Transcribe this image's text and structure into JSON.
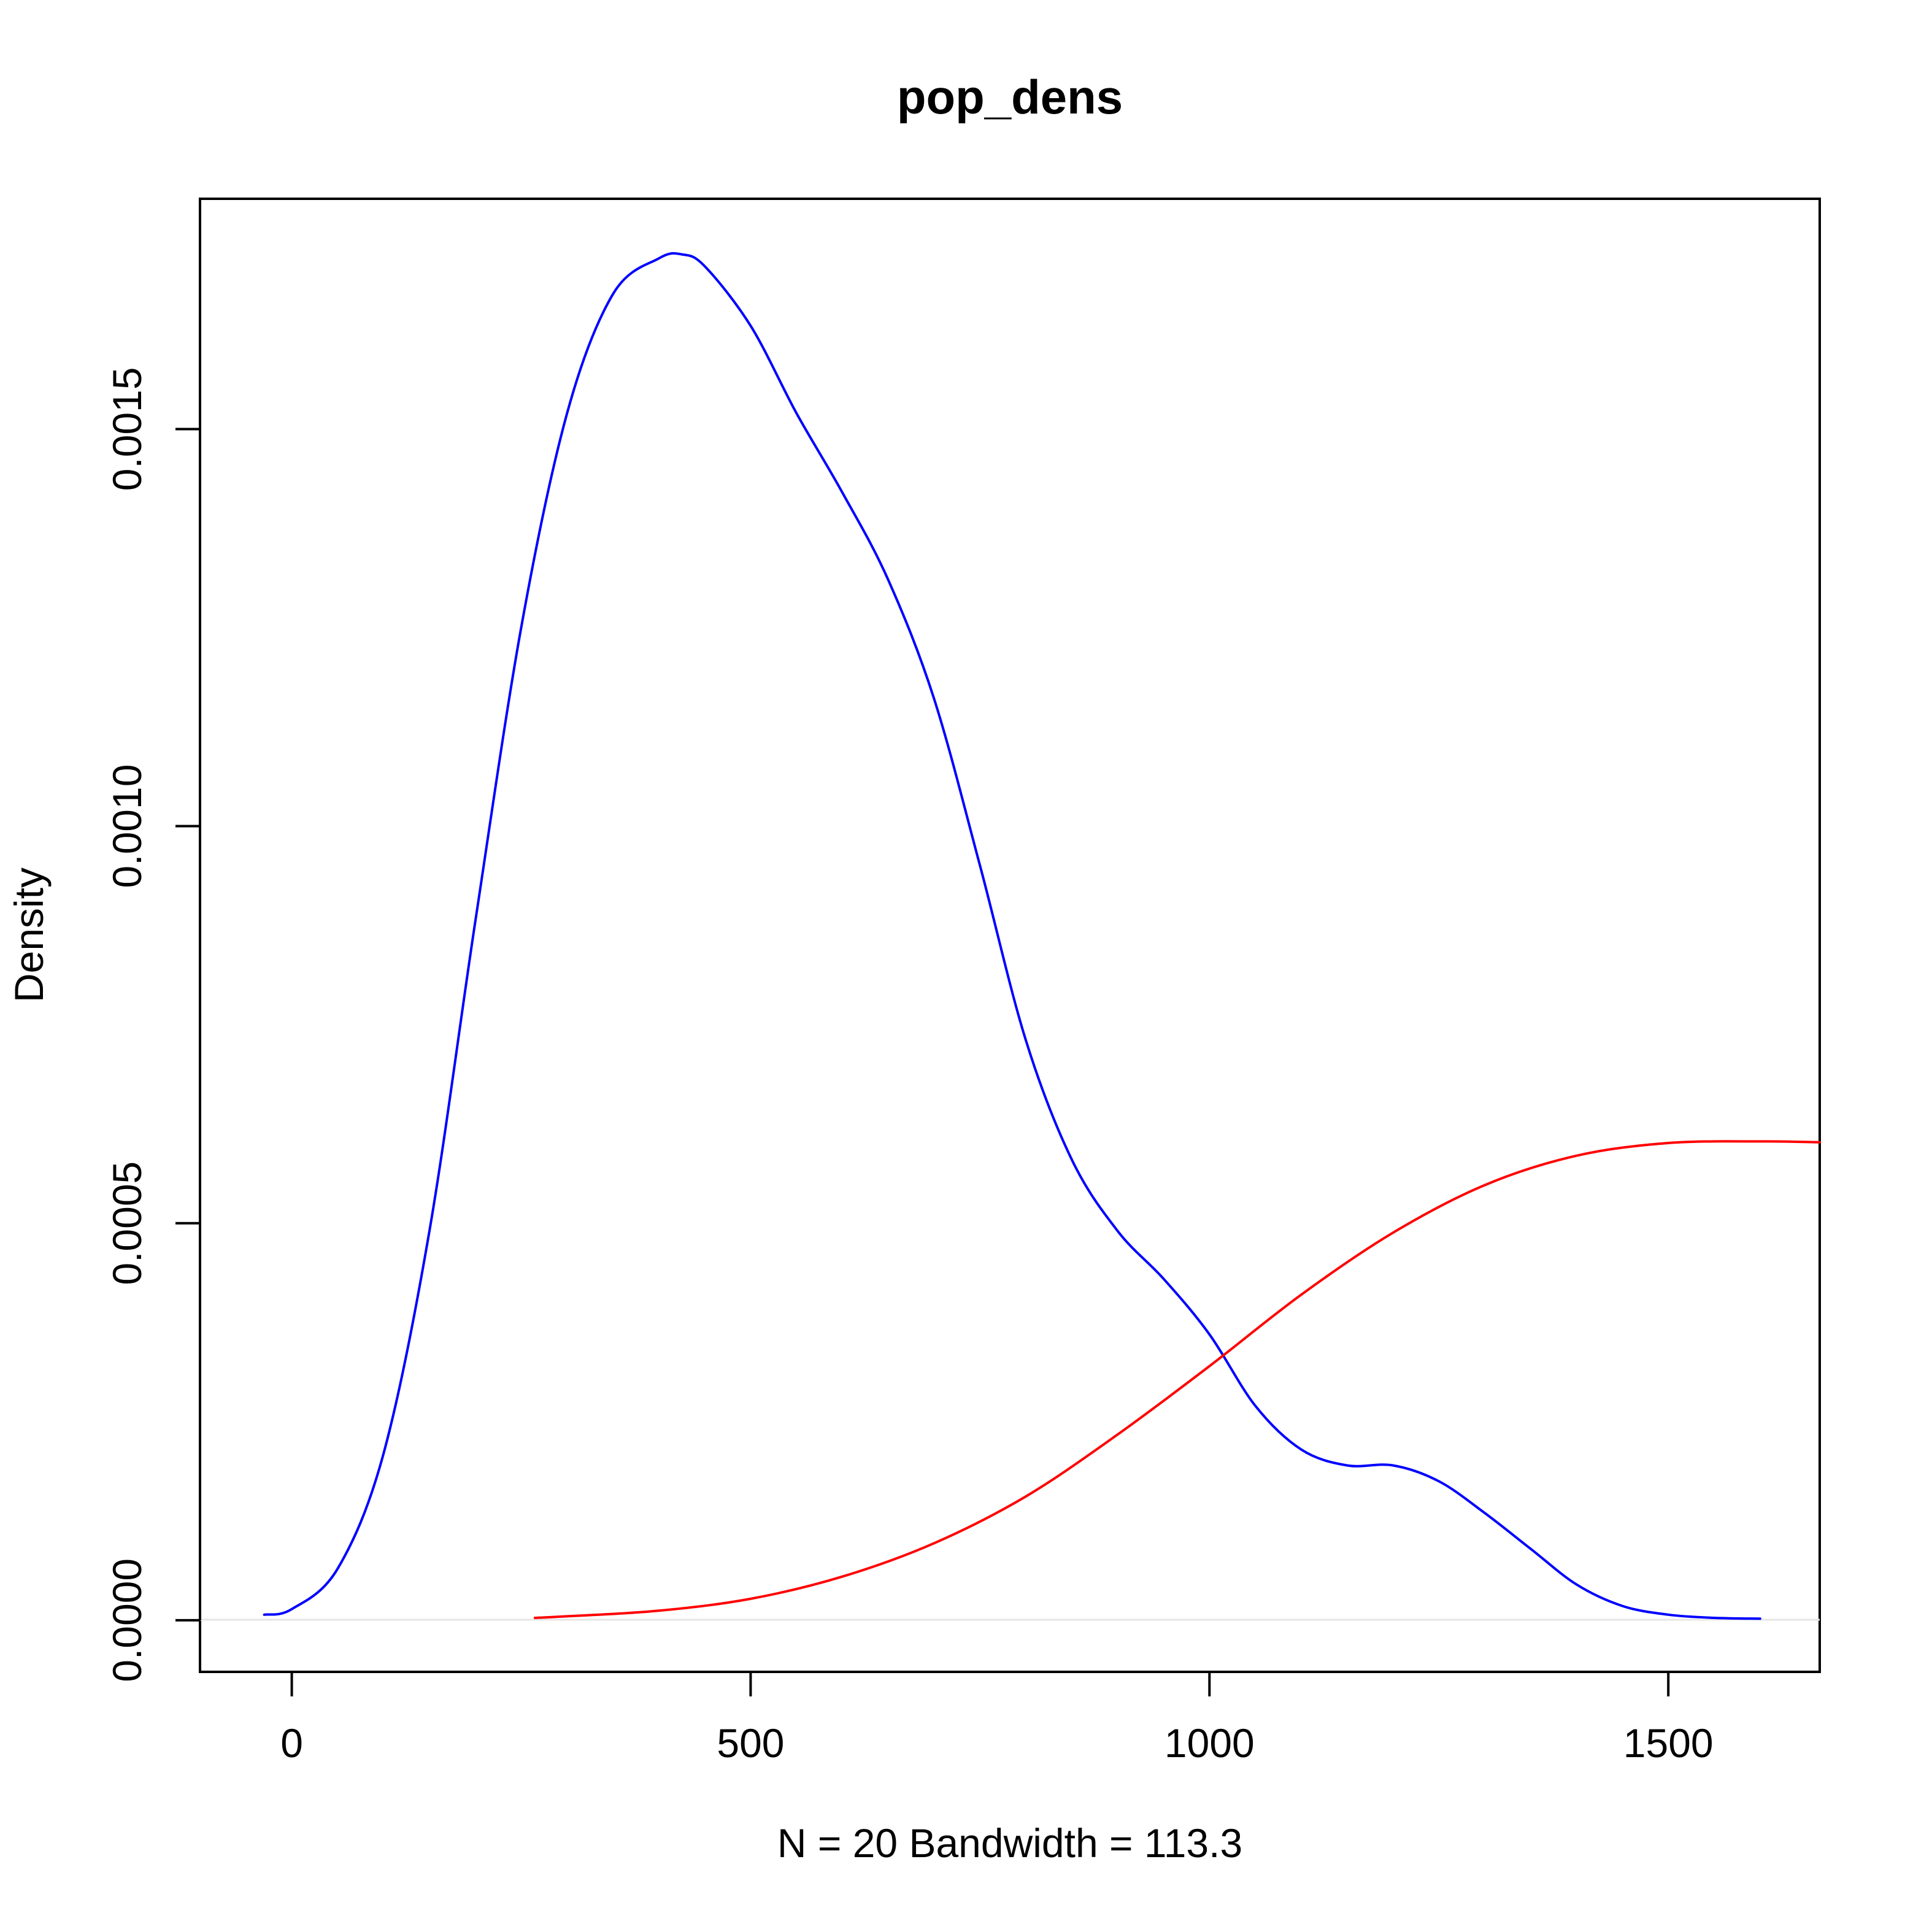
{
  "chart_data": {
    "type": "line",
    "title": "pop_dens",
    "xlabel": "N = 20   Bandwidth = 113.3",
    "ylabel": "Density",
    "xlim": [
      -100,
      1665
    ],
    "ylim": [
      -6.5e-05,
      0.00179
    ],
    "x_ticks": [
      0,
      500,
      1000,
      1500
    ],
    "x_tick_labels": [
      "0",
      "500",
      "1000",
      "1500"
    ],
    "y_ticks": [
      0.0,
      0.0005,
      0.001,
      0.0015
    ],
    "y_tick_labels": [
      "0.0000",
      "0.0005",
      "0.0010",
      "0.0015"
    ],
    "grid": false,
    "legend": null,
    "zero_line": true,
    "colors": {
      "series_0": "#0000ff",
      "series_1": "#ff0000",
      "zero_line": "#e6e6e6"
    },
    "series": [
      {
        "color": "#0000ff",
        "x": [
          -30,
          0,
          50,
          100,
          150,
          200,
          250,
          300,
          350,
          400,
          425,
          450,
          500,
          550,
          600,
          650,
          700,
          750,
          800,
          850,
          900,
          950,
          1000,
          1050,
          1100,
          1150,
          1200,
          1250,
          1300,
          1350,
          1400,
          1450,
          1500,
          1550,
          1600
        ],
        "y": [
          7e-06,
          1.4e-05,
          6.5e-05,
          0.00021,
          0.00049,
          0.00088,
          0.00125,
          0.00152,
          0.00167,
          0.001715,
          0.00172,
          0.001705,
          0.00163,
          0.00152,
          0.00142,
          0.00131,
          0.00116,
          0.00095,
          0.00073,
          0.00058,
          0.00049,
          0.00043,
          0.00036,
          0.00027,
          0.000215,
          0.000195,
          0.000195,
          0.000175,
          0.000135,
          9e-05,
          4.5e-05,
          1.8e-05,
          7e-06,
          3e-06,
          2e-06
        ]
      },
      {
        "color": "#ff0000",
        "x": [
          265,
          300,
          400,
          500,
          600,
          700,
          800,
          900,
          1000,
          1100,
          1200,
          1300,
          1400,
          1500,
          1600,
          1665
        ],
        "y": [
          3e-06,
          5e-06,
          1.2e-05,
          2.7e-05,
          5.5e-05,
          9.7e-05,
          0.000156,
          0.000234,
          0.00032,
          0.00041,
          0.000488,
          0.000548,
          0.000585,
          0.000601,
          0.000603,
          0.000602
        ]
      }
    ]
  }
}
